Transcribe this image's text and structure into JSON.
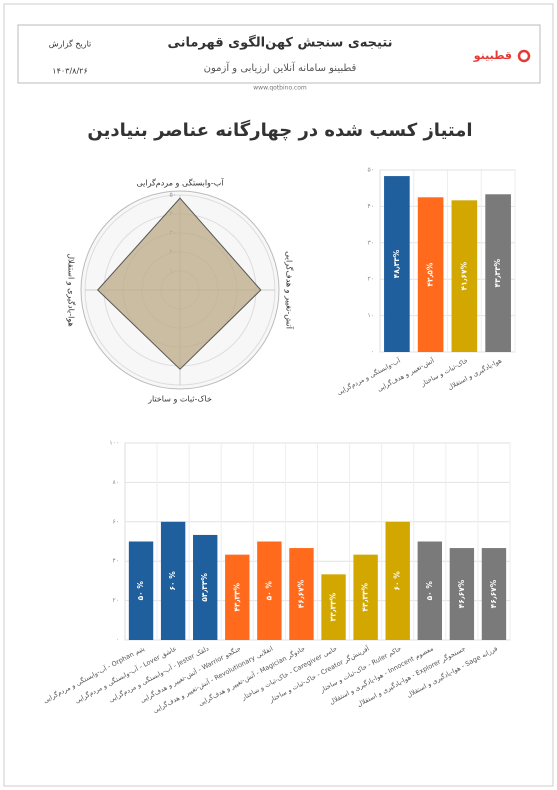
{
  "header": {
    "title": "نتیجه‌ی سنجش کهن‌الگوی قهرمانی",
    "subtitle": "قطبینو سامانه آنلاین ارزیابی و آزمون",
    "url": "www.qotbino.com",
    "date_label": "تاریخ گزارش",
    "date": "۱۴۰۳/۸/۲۶",
    "logo": "قطبینو"
  },
  "heading": "امتیاز کسب شده در چهارگانه عناصر بنیادین",
  "chart_data": [
    {
      "type": "radar",
      "categories": [
        "آب-وابستگی و مردم‌گرایی",
        "آتش-تغییر و هدف‌گرایی",
        "خاک-ثبات و ساختار",
        "هوا-یادگیری و استقلال"
      ],
      "values": [
        48.33,
        42.5,
        41.67,
        43.33
      ],
      "color": "#bfae8c",
      "rlim": [
        0,
        50
      ],
      "rticks": [
        {
          "value": 0,
          "label": "۰"
        },
        {
          "value": 10,
          "label": "۱۰"
        },
        {
          "value": 20,
          "label": "۲۰"
        },
        {
          "value": 30,
          "label": "۳۰"
        },
        {
          "value": 40,
          "label": "۴۰"
        },
        {
          "value": 50,
          "label": "۵۰"
        }
      ]
    },
    {
      "type": "bar",
      "categories": [
        "آب-وابستگی و مردم‌گرایی",
        "آتش-تغییر و هدف‌گرایی",
        "خاک-ثبات و ساختار",
        "هوا-یادگیری و استقلال"
      ],
      "values": [
        48.33,
        42.5,
        41.67,
        43.33
      ],
      "value_labels": [
        "۴۸٫۳۳%",
        "۴۲٫۵%",
        "۴۱٫۶۷%",
        "۴۳٫۳۳%"
      ],
      "colors": [
        "#1f5f9e",
        "#ff6a1c",
        "#d1a700",
        "#7a7a7a"
      ],
      "ylim": [
        0,
        50
      ],
      "yticks": [
        {
          "value": 0,
          "label": "۰"
        },
        {
          "value": 10,
          "label": "۱۰"
        },
        {
          "value": 20,
          "label": "۲۰"
        },
        {
          "value": 30,
          "label": "۳۰"
        },
        {
          "value": 40,
          "label": "۴۰"
        },
        {
          "value": 50,
          "label": "۵۰"
        }
      ],
      "grid": true
    },
    {
      "type": "bar",
      "categories": [
        "آب-وابستگی و مردم‌گرایی - Orphan یتیم",
        "آب-وابستگی و مردم‌گرایی - Lover عاشق",
        "آب-وابستگی و مردم‌گرایی - Jester دلقک",
        "آتش-تغییر و هدف‌گرایی - Warrior جنگجو",
        "آتش-تغییر و هدف‌گرایی - Revolutionary انقلابی",
        "آتش-تغییر و هدف‌گرایی - Magician جادوگر",
        "خاک-ثبات و ساختار - Caregiver حامی",
        "خاک-ثبات و ساختار - Creator آفرینش‌گر",
        "خاک-ثبات و ساختار - Ruler حاکم",
        "هوا-یادگیری و استقلال - Innocent معصوم",
        "هوا-یادگیری و استقلال - Explorer جستجوگر",
        "هوا-یادگیری و استقلال - Sage فرزانه"
      ],
      "values": [
        50,
        60,
        53.33,
        43.33,
        50,
        46.67,
        33.33,
        43.33,
        60,
        50,
        46.67,
        46.67
      ],
      "value_labels": [
        "۵۰ %",
        "۶۰ %",
        "۵۳٫۳۳%",
        "۴۳٫۳۳%",
        "۵۰ %",
        "۴۶٫۶۷%",
        "۳۳٫۳۳%",
        "۴۳٫۳۳%",
        "۶۰ %",
        "۵۰ %",
        "۴۶٫۶۷%",
        "۴۶٫۶۷%"
      ],
      "colors": [
        "#1f5f9e",
        "#1f5f9e",
        "#1f5f9e",
        "#ff6a1c",
        "#ff6a1c",
        "#ff6a1c",
        "#d1a700",
        "#d1a700",
        "#d1a700",
        "#7a7a7a",
        "#7a7a7a",
        "#7a7a7a"
      ],
      "ylim": [
        0,
        100
      ],
      "yticks": [
        {
          "value": 0,
          "label": "۰"
        },
        {
          "value": 20,
          "label": "۲۰"
        },
        {
          "value": 40,
          "label": "۴۰"
        },
        {
          "value": 60,
          "label": "۶۰"
        },
        {
          "value": 80,
          "label": "۸۰"
        },
        {
          "value": 100,
          "label": "۱۰۰"
        }
      ],
      "grid": true
    }
  ]
}
